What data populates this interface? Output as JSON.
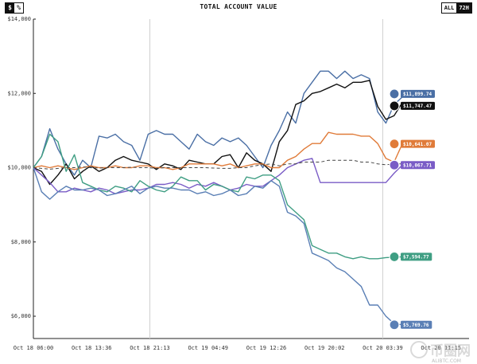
{
  "header": {
    "toggle": [
      {
        "label": "$",
        "active": true
      },
      {
        "label": "%",
        "active": false
      }
    ],
    "title": "TOTAL ACCOUNT VALUE",
    "ranges": [
      {
        "label": "ALL",
        "active": false
      },
      {
        "label": "72H",
        "active": true
      }
    ]
  },
  "watermark": {
    "text": "币圈网",
    "url": "ALIBTC.COM"
  },
  "chart_data": {
    "type": "line",
    "title": "TOTAL ACCOUNT VALUE",
    "xlabel": "",
    "ylabel": "",
    "ylim": [
      5400,
      14000
    ],
    "yticks": [
      6000,
      8000,
      10000,
      12000,
      14000
    ],
    "ytick_labels": [
      "$6,000",
      "$8,000",
      "$10,000",
      "$12,000",
      "$14,000"
    ],
    "xticks": [
      "Oct 18 06:00",
      "Oct 18 13:36",
      "Oct 18 21:13",
      "Oct 19 04:49",
      "Oct 19 12:26",
      "Oct 19 20:02",
      "Oct 20 03:39",
      "Oct 20 11:15"
    ],
    "grid": {
      "vertical_lines_at_tick_index": [
        2,
        6
      ]
    },
    "baseline": 10000,
    "series": [
      {
        "color": "#4a6fa5",
        "icon": "deepseek-icon",
        "endLabel": "$11,899.74",
        "values": [
          10000,
          10300,
          11050,
          10500,
          10100,
          9800,
          10200,
          10000,
          10850,
          10800,
          10900,
          10700,
          10600,
          10200,
          10900,
          11000,
          10900,
          10900,
          10700,
          10500,
          10900,
          10700,
          10600,
          10800,
          10700,
          10800,
          10600,
          10300,
          10000,
          10600,
          11000,
          11500,
          11200,
          12000,
          12300,
          12600,
          12600,
          12400,
          12600,
          12400,
          12500,
          12400,
          11500,
          11200,
          11700,
          11900
        ]
      },
      {
        "color": "#111111",
        "icon": "grok-icon",
        "endLabel": "$11,747.47",
        "values": [
          10000,
          9900,
          9550,
          9800,
          10100,
          9700,
          9900,
          10050,
          9900,
          10000,
          10200,
          10300,
          10200,
          10150,
          10100,
          9950,
          10100,
          10050,
          9950,
          10200,
          10150,
          10100,
          10100,
          10300,
          10350,
          10000,
          10400,
          10200,
          10100,
          9900,
          10700,
          11000,
          11700,
          11800,
          12000,
          12050,
          12150,
          12250,
          12150,
          12300,
          12300,
          12350,
          11650,
          11300,
          11400,
          11750
        ]
      },
      {
        "color": "#e07b39",
        "icon": "claude-icon",
        "endLabel": "$10,641.07",
        "values": [
          10000,
          10050,
          10000,
          10050,
          10000,
          9950,
          10000,
          10050,
          10000,
          10000,
          10050,
          10000,
          10000,
          10050,
          10050,
          10000,
          10000,
          9950,
          10000,
          10100,
          10100,
          10100,
          10100,
          10050,
          10100,
          10000,
          10050,
          10100,
          10100,
          10000,
          10000,
          10200,
          10300,
          10500,
          10650,
          10650,
          10950,
          10900,
          10900,
          10900,
          10850,
          10850,
          10650,
          10250,
          10150,
          10640
        ]
      },
      {
        "color": "#7a5cc6",
        "icon": "gemini-icon",
        "endLabel": "$10,067.71",
        "values": [
          10000,
          9800,
          9600,
          9350,
          9350,
          9450,
          9400,
          9350,
          9450,
          9400,
          9300,
          9350,
          9400,
          9400,
          9450,
          9550,
          9550,
          9600,
          9550,
          9450,
          9550,
          9500,
          9600,
          9500,
          9400,
          9450,
          9550,
          9500,
          9500,
          9650,
          9800,
          10000,
          10100,
          10200,
          10250,
          9600,
          9600,
          9600,
          9600,
          9600,
          9600,
          9600,
          9600,
          9600,
          9850,
          10070
        ]
      },
      {
        "color": "#3f9e83",
        "icon": "openai-icon",
        "endLabel": "$7,594.77",
        "values": [
          10000,
          10300,
          10900,
          10700,
          9900,
          10350,
          9600,
          9500,
          9400,
          9350,
          9500,
          9450,
          9350,
          9650,
          9500,
          9400,
          9350,
          9500,
          9750,
          9650,
          9650,
          9400,
          9550,
          9500,
          9400,
          9350,
          9750,
          9700,
          9800,
          9800,
          9650,
          9000,
          8800,
          8600,
          7900,
          7800,
          7700,
          7700,
          7600,
          7550,
          7600,
          7550,
          7550,
          7580,
          7590,
          7600
        ]
      },
      {
        "color": "#5a7fb5",
        "icon": "qwen-icon",
        "endLabel": "$5,769.76",
        "values": [
          10000,
          9350,
          9150,
          9350,
          9500,
          9400,
          9400,
          9450,
          9400,
          9250,
          9300,
          9400,
          9500,
          9300,
          9450,
          9500,
          9450,
          9450,
          9400,
          9400,
          9300,
          9350,
          9250,
          9300,
          9400,
          9250,
          9300,
          9500,
          9450,
          9650,
          9500,
          8800,
          8700,
          8500,
          7700,
          7600,
          7500,
          7300,
          7200,
          7000,
          6800,
          6300,
          6300,
          6000,
          5800,
          5770
        ]
      },
      {
        "color": "#444444",
        "dashed": true,
        "values": [
          10000,
          9980,
          9960,
          9980,
          10000,
          10000,
          10020,
          10000,
          9990,
          10000,
          10000,
          10000,
          10010,
          10000,
          10000,
          9980,
          10000,
          10000,
          10000,
          10000,
          10000,
          10000,
          9990,
          9980,
          9980,
          10000,
          10000,
          10050,
          10080,
          10100,
          10050,
          10100,
          10100,
          10150,
          10150,
          10150,
          10200,
          10200,
          10200,
          10200,
          10150,
          10150,
          10100,
          10080,
          10100,
          10100
        ]
      }
    ]
  }
}
